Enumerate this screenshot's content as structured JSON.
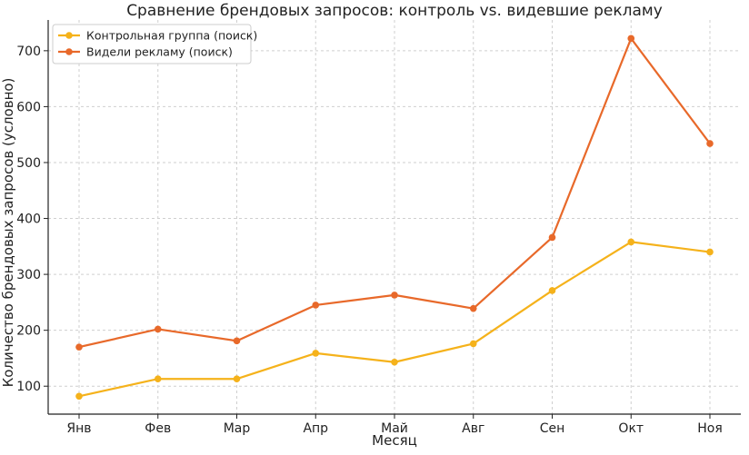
{
  "chart_data": {
    "type": "line",
    "title": "Сравнение брендовых запросов: контроль vs. видевшие рекламу",
    "xlabel": "Месяц",
    "ylabel": "Количество брендовых запросов (условно)",
    "categories": [
      "Янв",
      "Фев",
      "Мар",
      "Апр",
      "Май",
      "Авг",
      "Сен",
      "Окт",
      "Ноя"
    ],
    "ylim": [
      50,
      755
    ],
    "yticks": [
      100,
      200,
      300,
      400,
      500,
      600,
      700
    ],
    "grid": true,
    "legend_position": "top-left",
    "series": [
      {
        "name": "Контрольная группа (поиск)",
        "color": "#F5B21B",
        "values": [
          82,
          113,
          113,
          159,
          143,
          176,
          271,
          358,
          340
        ]
      },
      {
        "name": "Видели рекламу (поиск)",
        "color": "#E8692A",
        "values": [
          170,
          202,
          181,
          245,
          263,
          239,
          366,
          722,
          534
        ]
      }
    ]
  }
}
